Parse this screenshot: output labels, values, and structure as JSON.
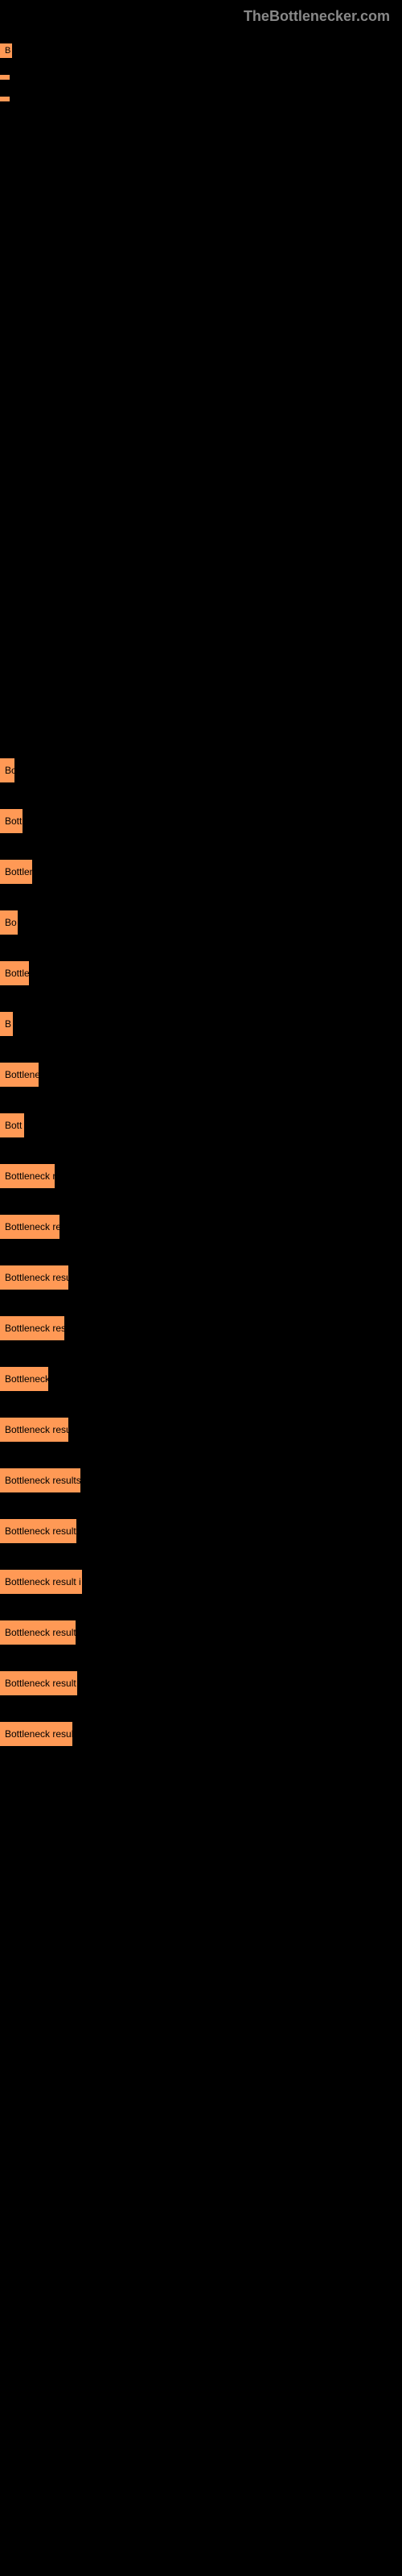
{
  "header": {
    "logo_text": "TheBottlenecker.com"
  },
  "quick_links": {
    "items": [
      {
        "label": "B",
        "width": 15
      },
      {
        "label": "",
        "width": 8
      },
      {
        "label": "",
        "width": 3
      }
    ]
  },
  "bottleneck_chart": {
    "type": "bar",
    "background_color": "#000000",
    "bar_color": "#ff9955",
    "text_color": "#000000",
    "font_size": 12,
    "items": [
      {
        "label": "Bo",
        "width": 18
      },
      {
        "label": "Bott",
        "width": 28
      },
      {
        "label": "Bottlen",
        "width": 40
      },
      {
        "label": "Bo",
        "width": 22
      },
      {
        "label": "Bottle",
        "width": 36
      },
      {
        "label": "B",
        "width": 16
      },
      {
        "label": "Bottlene",
        "width": 48
      },
      {
        "label": "Bott",
        "width": 30
      },
      {
        "label": "Bottleneck r",
        "width": 68
      },
      {
        "label": "Bottleneck re",
        "width": 74
      },
      {
        "label": "Bottleneck resu",
        "width": 85
      },
      {
        "label": "Bottleneck res",
        "width": 80
      },
      {
        "label": "Bottleneck",
        "width": 60
      },
      {
        "label": "Bottleneck resu",
        "width": 85
      },
      {
        "label": "Bottleneck results",
        "width": 100
      },
      {
        "label": "Bottleneck result",
        "width": 95
      },
      {
        "label": "Bottleneck result i",
        "width": 102
      },
      {
        "label": "Bottleneck result",
        "width": 94
      },
      {
        "label": "Bottleneck result",
        "width": 96
      },
      {
        "label": "Bottleneck resul",
        "width": 90
      }
    ]
  }
}
